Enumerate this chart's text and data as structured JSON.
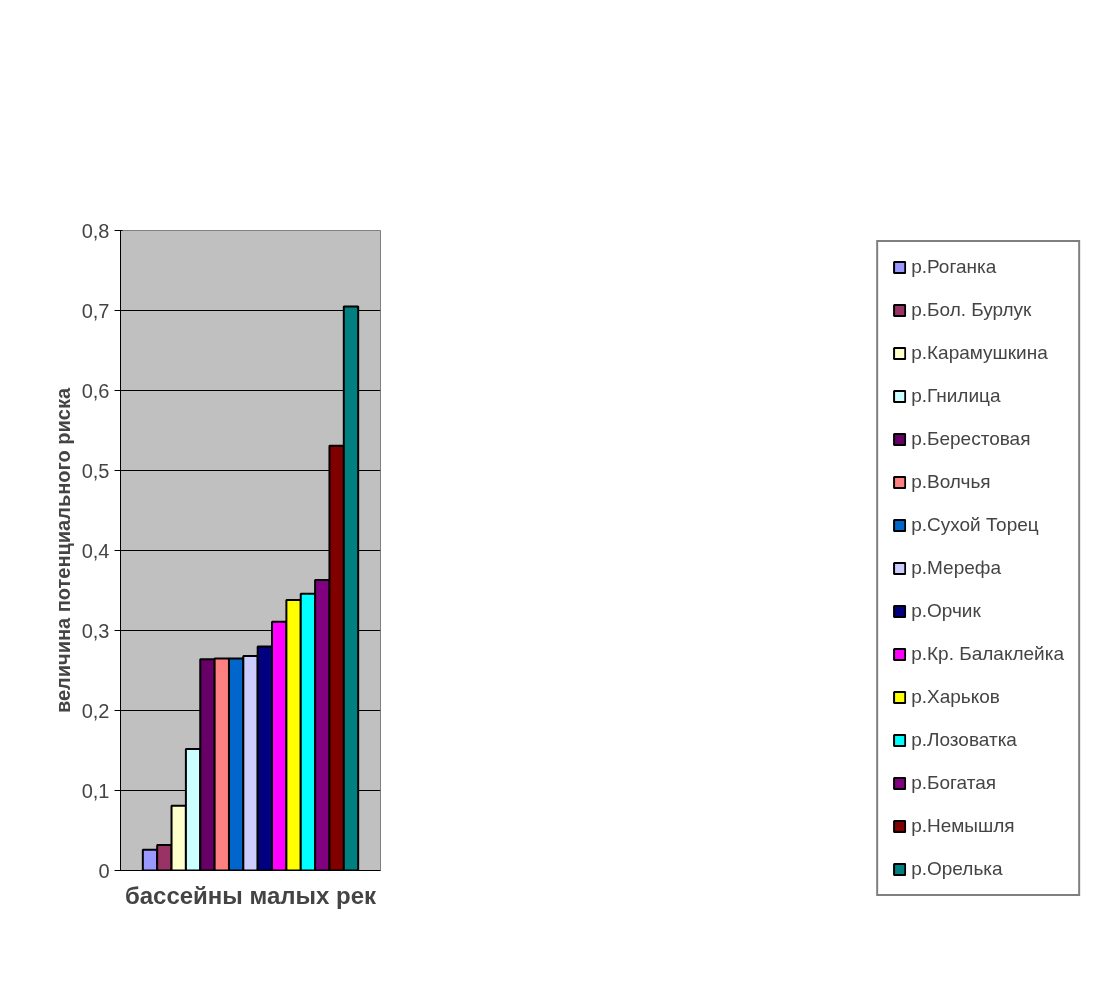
{
  "chart_data": {
    "type": "bar",
    "xlabel": "бассейны малых рек",
    "ylabel": "величина потенциального риска",
    "categories": [
      null
    ],
    "ylim": [
      0,
      0.8
    ],
    "yticks": [
      {
        "value": 0,
        "label": "0"
      },
      {
        "value": 0.1,
        "label": "0,1"
      },
      {
        "value": 0.2,
        "label": "0,2"
      },
      {
        "value": 0.3,
        "label": "0,3"
      },
      {
        "value": 0.4,
        "label": "0,4"
      },
      {
        "value": 0.5,
        "label": "0,5"
      },
      {
        "value": 0.6,
        "label": "0,6"
      },
      {
        "value": 0.7,
        "label": "0,7"
      },
      {
        "value": 0.8,
        "label": "0,8"
      }
    ],
    "grid": "y",
    "legend": "right",
    "series": [
      {
        "name": "р.Роганка",
        "color": "#9999ff",
        "values": [
          0.026
        ]
      },
      {
        "name": "р.Бол. Бурлук",
        "color": "#993366",
        "values": [
          0.032
        ]
      },
      {
        "name": "р.Карамушкина",
        "color": "#ffffcc",
        "values": [
          0.081
        ]
      },
      {
        "name": "р.Гнилица",
        "color": "#ccffff",
        "values": [
          0.152
        ]
      },
      {
        "name": "р.Берестовая",
        "color": "#660066",
        "values": [
          0.264
        ]
      },
      {
        "name": "р.Волчья",
        "color": "#ff8080",
        "values": [
          0.265
        ]
      },
      {
        "name": "р.Сухой Торец",
        "color": "#0066cc",
        "values": [
          0.265
        ]
      },
      {
        "name": "р.Мерефа",
        "color": "#ccccff",
        "values": [
          0.268
        ]
      },
      {
        "name": "р.Орчик",
        "color": "#000080",
        "values": [
          0.28
        ]
      },
      {
        "name": "р.Кр. Балаклейка",
        "color": "#ff00ff",
        "values": [
          0.311
        ]
      },
      {
        "name": "р.Харьков",
        "color": "#ffff00",
        "values": [
          0.338
        ]
      },
      {
        "name": "р.Лозоватка",
        "color": "#00ffff",
        "values": [
          0.346
        ]
      },
      {
        "name": "р.Богатая",
        "color": "#800080",
        "values": [
          0.363
        ]
      },
      {
        "name": "р.Немышля",
        "color": "#800000",
        "values": [
          0.531
        ]
      },
      {
        "name": "р.Орелька",
        "color": "#008080",
        "values": [
          0.705
        ]
      }
    ]
  }
}
